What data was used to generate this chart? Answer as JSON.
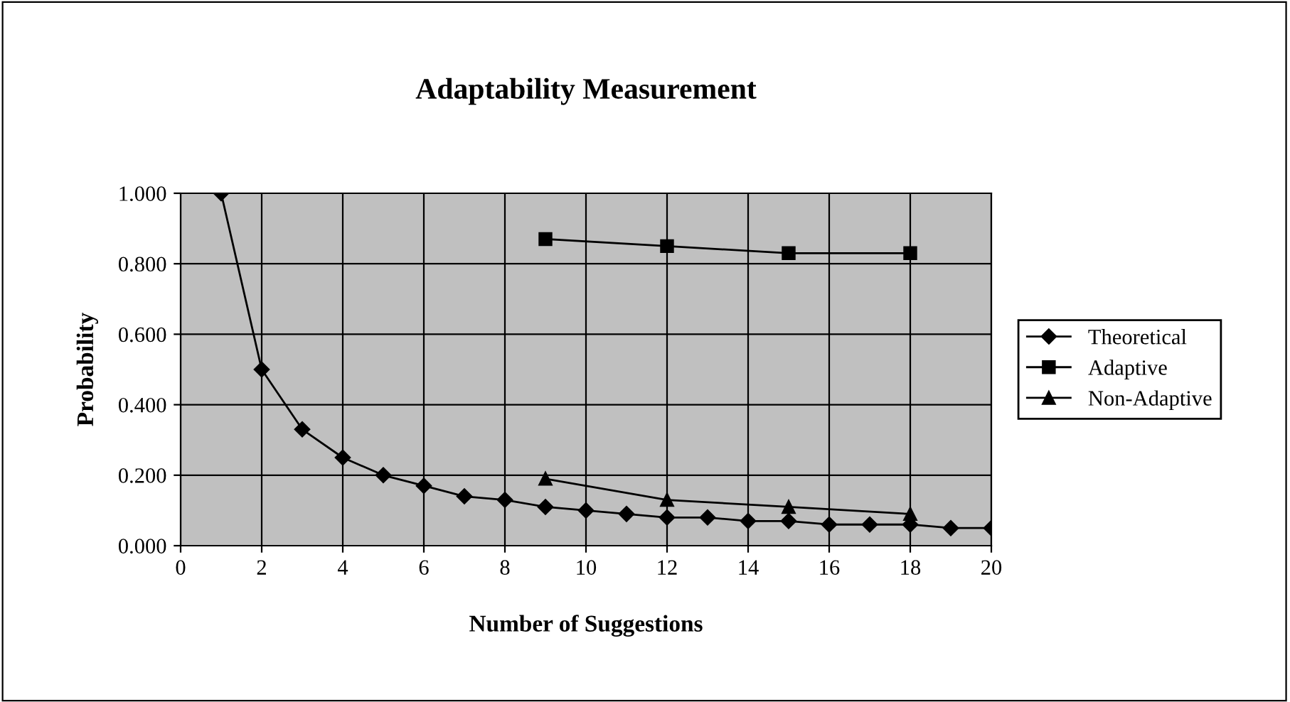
{
  "chart_data": {
    "type": "line",
    "title": "Adaptability Measurement",
    "xlabel": "Number of Suggestions",
    "ylabel": "Probability",
    "xlim": [
      0,
      20
    ],
    "xticks": [
      0,
      2,
      4,
      6,
      8,
      10,
      12,
      14,
      16,
      18,
      20
    ],
    "ylim": [
      0,
      1
    ],
    "yticks": [
      {
        "value": 0,
        "label": "0.000"
      },
      {
        "value": 0.2,
        "label": "0.200"
      },
      {
        "value": 0.4,
        "label": "0.400"
      },
      {
        "value": 0.6,
        "label": "0.600"
      },
      {
        "value": 0.8,
        "label": "0.800"
      },
      {
        "value": 1,
        "label": "1.000"
      }
    ],
    "grid": true,
    "legend": "right",
    "line_style": "solid",
    "series": [
      {
        "name": "Theoretical",
        "color": "#000000",
        "marker": "diamond",
        "x": [
          1,
          2,
          3,
          4,
          5,
          6,
          7,
          8,
          9,
          10,
          11,
          12,
          13,
          14,
          15,
          16,
          17,
          18,
          19,
          20
        ],
        "values": [
          1.0,
          0.5,
          0.33,
          0.25,
          0.2,
          0.17,
          0.14,
          0.13,
          0.11,
          0.1,
          0.09,
          0.08,
          0.08,
          0.07,
          0.07,
          0.06,
          0.06,
          0.06,
          0.05,
          0.05
        ]
      },
      {
        "name": "Adaptive",
        "color": "#000000",
        "marker": "square",
        "x": [
          9,
          12,
          15,
          18
        ],
        "values": [
          0.87,
          0.85,
          0.83,
          0.83
        ]
      },
      {
        "name": "Non-Adaptive",
        "color": "#000000",
        "marker": "triangle",
        "x": [
          9,
          12,
          15,
          18
        ],
        "values": [
          0.19,
          0.13,
          0.11,
          0.09
        ]
      }
    ]
  }
}
